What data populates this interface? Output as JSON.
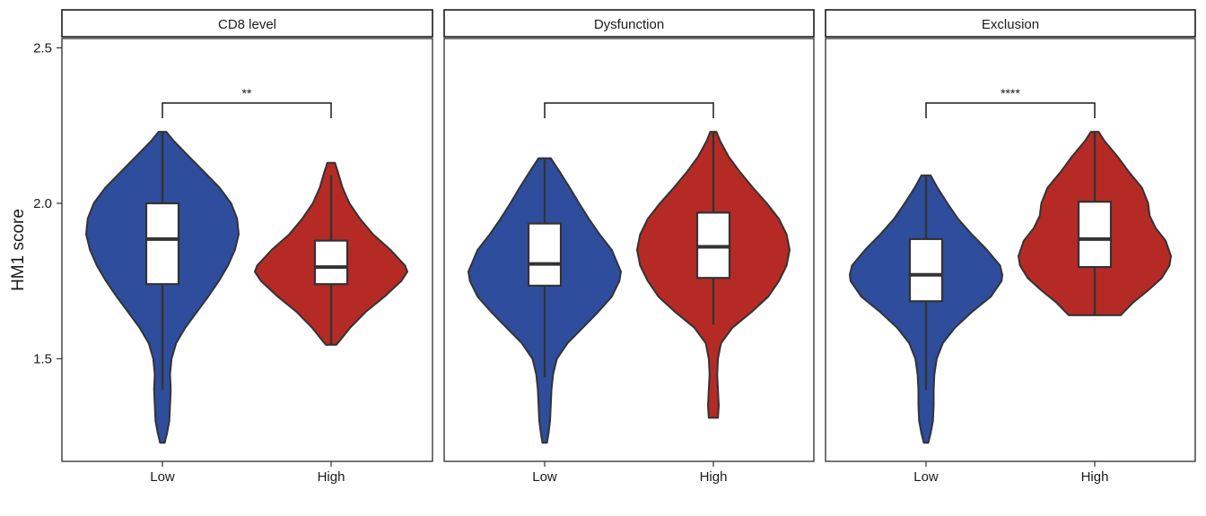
{
  "chart_data": {
    "type": "violin",
    "ylabel": "HM1 score",
    "xlabel": "",
    "ylim": [
      1.17,
      2.53
    ],
    "yticks": [
      1.5,
      2.0,
      2.5
    ],
    "ytick_labels": [
      "1.5",
      "2.0",
      "2.5"
    ],
    "categories": [
      "Low",
      "High"
    ],
    "colors": {
      "Low": "#2e4d9c",
      "High": "#b52a25"
    },
    "facets": [
      {
        "label": "CD8 level",
        "significance": "**",
        "groups": [
          {
            "category": "Low",
            "ymin": 1.23,
            "ymax": 2.23,
            "box": {
              "whisker_low": 1.4,
              "q1": 1.74,
              "median": 1.885,
              "q3": 2.0,
              "whisker_high": 2.23
            },
            "density": [
              [
                1.23,
                0.03
              ],
              [
                1.26,
                0.06
              ],
              [
                1.3,
                0.09
              ],
              [
                1.35,
                0.1
              ],
              [
                1.4,
                0.11
              ],
              [
                1.45,
                0.1
              ],
              [
                1.5,
                0.12
              ],
              [
                1.55,
                0.18
              ],
              [
                1.6,
                0.3
              ],
              [
                1.65,
                0.45
              ],
              [
                1.7,
                0.6
              ],
              [
                1.75,
                0.74
              ],
              [
                1.8,
                0.86
              ],
              [
                1.85,
                0.95
              ],
              [
                1.9,
                1.0
              ],
              [
                1.95,
                0.98
              ],
              [
                2.0,
                0.9
              ],
              [
                2.05,
                0.75
              ],
              [
                2.1,
                0.55
              ],
              [
                2.15,
                0.35
              ],
              [
                2.2,
                0.15
              ],
              [
                2.23,
                0.05
              ]
            ]
          },
          {
            "category": "High",
            "ymin": 1.545,
            "ymax": 2.13,
            "box": {
              "whisker_low": 1.545,
              "q1": 1.74,
              "median": 1.795,
              "q3": 1.88,
              "whisker_high": 2.09
            },
            "density": [
              [
                1.545,
                0.07
              ],
              [
                1.56,
                0.12
              ],
              [
                1.6,
                0.25
              ],
              [
                1.65,
                0.45
              ],
              [
                1.7,
                0.7
              ],
              [
                1.75,
                0.92
              ],
              [
                1.78,
                1.0
              ],
              [
                1.8,
                0.97
              ],
              [
                1.85,
                0.78
              ],
              [
                1.9,
                0.55
              ],
              [
                1.95,
                0.38
              ],
              [
                2.0,
                0.24
              ],
              [
                2.05,
                0.15
              ],
              [
                2.1,
                0.09
              ],
              [
                2.13,
                0.05
              ]
            ]
          }
        ]
      },
      {
        "label": "Dysfunction",
        "significance": "",
        "groups": [
          {
            "category": "Low",
            "ymin": 1.23,
            "ymax": 2.145,
            "box": {
              "whisker_low": 1.44,
              "q1": 1.735,
              "median": 1.805,
              "q3": 1.935,
              "whisker_high": 2.145
            },
            "density": [
              [
                1.23,
                0.03
              ],
              [
                1.26,
                0.05
              ],
              [
                1.3,
                0.07
              ],
              [
                1.35,
                0.08
              ],
              [
                1.4,
                0.09
              ],
              [
                1.45,
                0.11
              ],
              [
                1.5,
                0.16
              ],
              [
                1.55,
                0.3
              ],
              [
                1.6,
                0.5
              ],
              [
                1.65,
                0.7
              ],
              [
                1.7,
                0.88
              ],
              [
                1.75,
                0.98
              ],
              [
                1.78,
                1.0
              ],
              [
                1.85,
                0.88
              ],
              [
                1.9,
                0.72
              ],
              [
                1.95,
                0.58
              ],
              [
                2.0,
                0.45
              ],
              [
                2.05,
                0.33
              ],
              [
                2.1,
                0.2
              ],
              [
                2.145,
                0.08
              ]
            ]
          },
          {
            "category": "High",
            "ymin": 1.31,
            "ymax": 2.23,
            "box": {
              "whisker_low": 1.61,
              "q1": 1.76,
              "median": 1.86,
              "q3": 1.97,
              "whisker_high": 2.23
            },
            "density": [
              [
                1.31,
                0.06
              ],
              [
                1.35,
                0.07
              ],
              [
                1.4,
                0.06
              ],
              [
                1.45,
                0.05
              ],
              [
                1.5,
                0.06
              ],
              [
                1.55,
                0.1
              ],
              [
                1.6,
                0.25
              ],
              [
                1.65,
                0.5
              ],
              [
                1.7,
                0.72
              ],
              [
                1.75,
                0.86
              ],
              [
                1.8,
                0.96
              ],
              [
                1.85,
                1.0
              ],
              [
                1.9,
                0.96
              ],
              [
                1.95,
                0.86
              ],
              [
                2.0,
                0.7
              ],
              [
                2.05,
                0.52
              ],
              [
                2.1,
                0.35
              ],
              [
                2.15,
                0.2
              ],
              [
                2.2,
                0.09
              ],
              [
                2.23,
                0.04
              ]
            ]
          }
        ]
      },
      {
        "label": "Exclusion",
        "significance": "****",
        "groups": [
          {
            "category": "Low",
            "ymin": 1.23,
            "ymax": 2.09,
            "box": {
              "whisker_low": 1.4,
              "q1": 1.685,
              "median": 1.77,
              "q3": 1.885,
              "whisker_high": 2.09
            },
            "density": [
              [
                1.23,
                0.03
              ],
              [
                1.26,
                0.06
              ],
              [
                1.3,
                0.09
              ],
              [
                1.35,
                0.1
              ],
              [
                1.4,
                0.1
              ],
              [
                1.45,
                0.11
              ],
              [
                1.5,
                0.14
              ],
              [
                1.55,
                0.22
              ],
              [
                1.6,
                0.38
              ],
              [
                1.65,
                0.6
              ],
              [
                1.7,
                0.85
              ],
              [
                1.75,
                0.99
              ],
              [
                1.77,
                1.0
              ],
              [
                1.8,
                0.97
              ],
              [
                1.85,
                0.8
              ],
              [
                1.9,
                0.6
              ],
              [
                1.95,
                0.42
              ],
              [
                2.0,
                0.28
              ],
              [
                2.05,
                0.15
              ],
              [
                2.09,
                0.06
              ]
            ]
          },
          {
            "category": "High",
            "ymin": 1.64,
            "ymax": 2.23,
            "box": {
              "whisker_low": 1.64,
              "q1": 1.795,
              "median": 1.885,
              "q3": 2.005,
              "whisker_high": 2.23
            },
            "density": [
              [
                1.64,
                0.34
              ],
              [
                1.68,
                0.5
              ],
              [
                1.72,
                0.7
              ],
              [
                1.76,
                0.88
              ],
              [
                1.8,
                0.98
              ],
              [
                1.83,
                1.0
              ],
              [
                1.88,
                0.93
              ],
              [
                1.92,
                0.8
              ],
              [
                1.96,
                0.72
              ],
              [
                2.0,
                0.7
              ],
              [
                2.05,
                0.62
              ],
              [
                2.1,
                0.45
              ],
              [
                2.15,
                0.3
              ],
              [
                2.2,
                0.13
              ],
              [
                2.23,
                0.05
              ]
            ]
          }
        ]
      }
    ]
  }
}
